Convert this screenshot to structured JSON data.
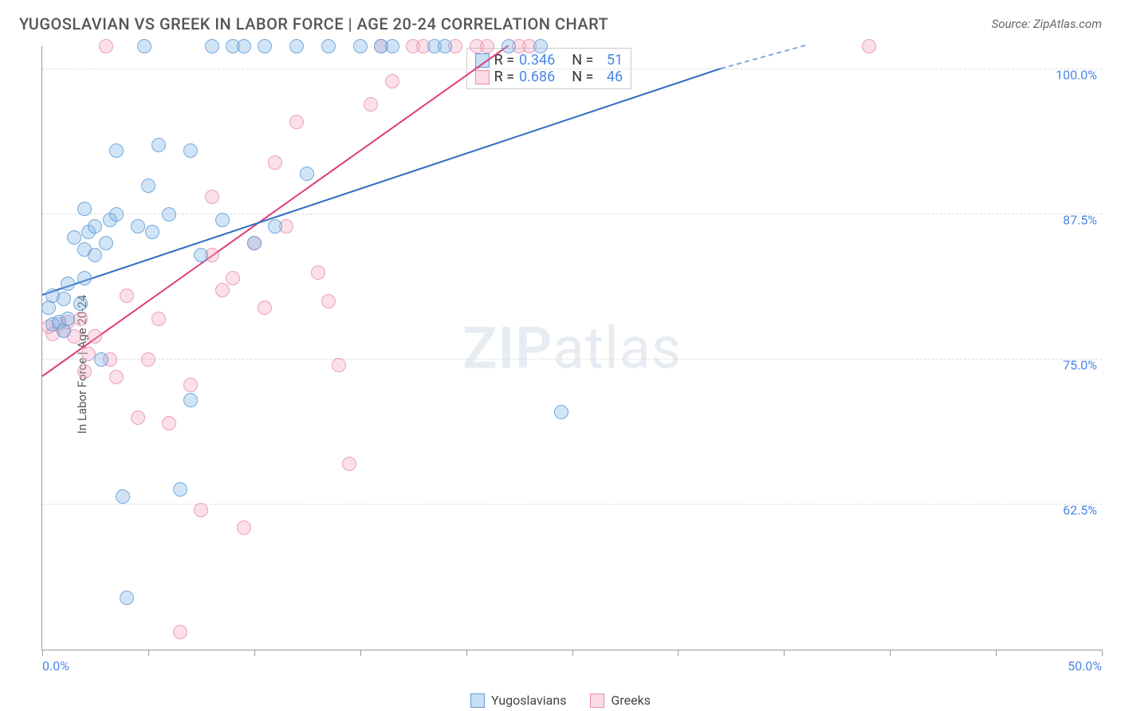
{
  "header": {
    "title": "YUGOSLAVIAN VS GREEK IN LABOR FORCE | AGE 20-24 CORRELATION CHART",
    "source": "Source: ZipAtlas.com"
  },
  "chart": {
    "type": "scatter",
    "ylabel": "In Labor Force | Age 20-24",
    "xlim": [
      0,
      50
    ],
    "ylim": [
      50,
      102
    ],
    "xtick_positions": [
      0,
      5,
      10,
      15,
      20,
      25,
      30,
      35,
      40,
      45,
      50
    ],
    "xtick_labels": {
      "0": "0.0%",
      "50": "50.0%"
    },
    "ytick_positions": [
      62.5,
      75.0,
      87.5,
      100.0
    ],
    "ytick_labels": [
      "62.5%",
      "75.0%",
      "87.5%",
      "100.0%"
    ],
    "background_color": "#ffffff",
    "grid_color": "#dddddd",
    "axis_color": "#999999",
    "series": {
      "yugoslavians": {
        "label": "Yugoslavians",
        "color_fill": "rgba(135,183,232,0.45)",
        "color_stroke": "#5b9bd5",
        "trend_color": "#2e6cc4",
        "trend_start": [
          0,
          80.5
        ],
        "trend_end_solid": [
          32,
          100
        ],
        "trend_end_dash": [
          36,
          102
        ],
        "R": "0.346",
        "N": "51",
        "points": [
          [
            0.3,
            79.5
          ],
          [
            0.5,
            78.0
          ],
          [
            0.5,
            80.5
          ],
          [
            0.8,
            78.2
          ],
          [
            1.0,
            80.2
          ],
          [
            1.0,
            77.5
          ],
          [
            1.2,
            81.5
          ],
          [
            1.2,
            78.5
          ],
          [
            1.5,
            85.5
          ],
          [
            1.8,
            79.8
          ],
          [
            2.0,
            88.0
          ],
          [
            2.0,
            82.0
          ],
          [
            2.0,
            84.5
          ],
          [
            2.2,
            86.0
          ],
          [
            2.5,
            86.5
          ],
          [
            2.5,
            84.0
          ],
          [
            2.8,
            75.0
          ],
          [
            3.0,
            85.0
          ],
          [
            3.2,
            87.0
          ],
          [
            3.5,
            93.0
          ],
          [
            3.5,
            87.5
          ],
          [
            3.8,
            63.2
          ],
          [
            4.0,
            54.5
          ],
          [
            4.5,
            86.5
          ],
          [
            4.8,
            102.0
          ],
          [
            5.0,
            90.0
          ],
          [
            5.2,
            86.0
          ],
          [
            5.5,
            93.5
          ],
          [
            6.0,
            87.5
          ],
          [
            6.5,
            63.8
          ],
          [
            7.0,
            93.0
          ],
          [
            7.0,
            71.5
          ],
          [
            7.5,
            84.0
          ],
          [
            8.0,
            102.0
          ],
          [
            8.5,
            87.0
          ],
          [
            9.0,
            102.0
          ],
          [
            9.5,
            102.0
          ],
          [
            10.0,
            85.0
          ],
          [
            10.5,
            102.0
          ],
          [
            11.0,
            86.5
          ],
          [
            12.0,
            102.0
          ],
          [
            12.5,
            91.0
          ],
          [
            13.5,
            102.0
          ],
          [
            15.0,
            102.0
          ],
          [
            16.0,
            102.0
          ],
          [
            16.5,
            102.0
          ],
          [
            18.5,
            102.0
          ],
          [
            19.0,
            102.0
          ],
          [
            22.0,
            102.0
          ],
          [
            23.5,
            102.0
          ],
          [
            24.5,
            70.5
          ]
        ]
      },
      "greeks": {
        "label": "Greeks",
        "color_fill": "rgba(244,166,191,0.40)",
        "color_stroke": "#e88fb0",
        "trend_color": "#e03c78",
        "trend_start": [
          0,
          73.5
        ],
        "trend_end_solid": [
          22,
          102
        ],
        "trend_end_dash": [
          22,
          102
        ],
        "R": "0.686",
        "N": "46",
        "points": [
          [
            0.3,
            77.8
          ],
          [
            0.5,
            77.2
          ],
          [
            0.8,
            78.0
          ],
          [
            1.0,
            77.5
          ],
          [
            1.2,
            78.2
          ],
          [
            1.5,
            77.0
          ],
          [
            1.8,
            78.5
          ],
          [
            2.0,
            74.0
          ],
          [
            2.2,
            75.5
          ],
          [
            2.5,
            77.0
          ],
          [
            3.0,
            102.0
          ],
          [
            3.2,
            75.0
          ],
          [
            3.5,
            73.5
          ],
          [
            4.0,
            80.5
          ],
          [
            4.5,
            70.0
          ],
          [
            5.0,
            75.0
          ],
          [
            5.5,
            78.5
          ],
          [
            6.0,
            69.5
          ],
          [
            6.5,
            51.5
          ],
          [
            7.0,
            72.8
          ],
          [
            7.5,
            62.0
          ],
          [
            8.0,
            89.0
          ],
          [
            8.0,
            84.0
          ],
          [
            8.5,
            81.0
          ],
          [
            9.0,
            82.0
          ],
          [
            9.5,
            60.5
          ],
          [
            10.0,
            85.0
          ],
          [
            10.5,
            79.5
          ],
          [
            11.0,
            92.0
          ],
          [
            11.5,
            86.5
          ],
          [
            12.0,
            95.5
          ],
          [
            13.0,
            82.5
          ],
          [
            13.5,
            80.0
          ],
          [
            14.0,
            74.5
          ],
          [
            14.5,
            66.0
          ],
          [
            15.5,
            97.0
          ],
          [
            16.0,
            102.0
          ],
          [
            16.5,
            99.0
          ],
          [
            17.5,
            102.0
          ],
          [
            18.0,
            102.0
          ],
          [
            19.5,
            102.0
          ],
          [
            20.5,
            102.0
          ],
          [
            21.0,
            102.0
          ],
          [
            22.5,
            102.0
          ],
          [
            23.0,
            102.0
          ],
          [
            39.0,
            102.0
          ]
        ]
      }
    },
    "stats_box": {
      "r_label": "R =",
      "n_label": "N ="
    },
    "legend": {
      "items": [
        "Yugoslavians",
        "Greeks"
      ]
    },
    "watermark": {
      "part1": "ZIP",
      "part2": "atlas"
    }
  }
}
